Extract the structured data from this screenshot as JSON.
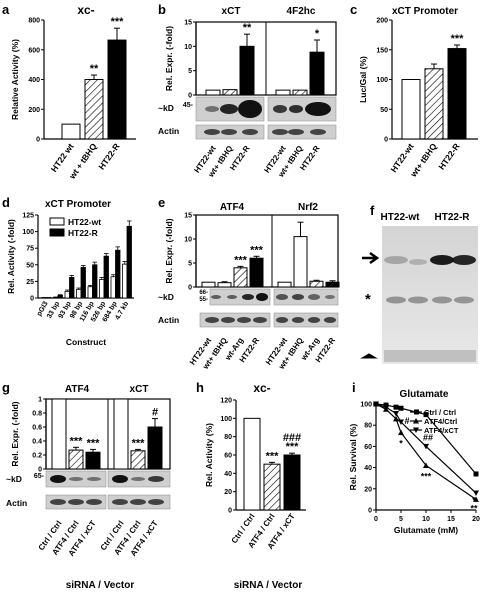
{
  "chart_data": [
    {
      "panel": "a",
      "type": "bar",
      "title": "xc-",
      "ylabel": "Relative Activity (%)",
      "ylim": [
        0,
        800
      ],
      "yticks": [
        0,
        200,
        400,
        600,
        800
      ],
      "categories": [
        "HT22 wt",
        "wt + tBHQ",
        "HT22-R"
      ],
      "values": [
        100,
        400,
        665
      ],
      "errors": [
        0,
        30,
        80
      ],
      "significance": [
        "",
        "**",
        "***"
      ],
      "fills": [
        "white",
        "hatch",
        "black"
      ]
    },
    {
      "panel": "b",
      "type": "bar",
      "ylabel": "Rel. Expr. (-fold)",
      "ylim": [
        0,
        15
      ],
      "yticks": [
        0,
        5,
        10,
        15
      ],
      "groups": [
        {
          "title": "xCT",
          "categories": [
            "HT22-wt",
            "wt+ tBHQ",
            "HT22-R"
          ],
          "values": [
            1,
            1.1,
            10
          ],
          "errors": [
            0,
            0,
            2.5
          ],
          "significance": [
            "",
            "",
            "**"
          ],
          "band_labels": [
            "~kD",
            "45-",
            "Actin"
          ]
        },
        {
          "title": "4F2hc",
          "categories": [
            "HT22-wt",
            "wt+ tBHQ",
            "HT22-R"
          ],
          "values": [
            1,
            1,
            8.8
          ],
          "errors": [
            0,
            0,
            2.5
          ],
          "significance": [
            "",
            "",
            "*"
          ],
          "band_labels": [
            "100-"
          ]
        }
      ]
    },
    {
      "panel": "c",
      "type": "bar",
      "title": "xCT Promoter",
      "ylabel": "Luc/Gal (%)",
      "ylim": [
        0,
        200
      ],
      "yticks": [
        0,
        50,
        100,
        150,
        200
      ],
      "categories": [
        "HT22-wt",
        "wt+ tBHQ",
        "HT22-R"
      ],
      "values": [
        100,
        118,
        152
      ],
      "errors": [
        0,
        8,
        6
      ],
      "significance": [
        "",
        "",
        "***"
      ]
    },
    {
      "panel": "d",
      "type": "bar",
      "title": "xCT Promoter",
      "xlabel": "Construct",
      "ylabel": "Rel. Activity (-fold)",
      "ylim": [
        0,
        125
      ],
      "yticks": [
        0,
        25,
        50,
        75,
        100,
        125
      ],
      "categories": [
        "pGl3",
        "33 bp",
        "93 bp",
        "98 bp",
        "116 bp",
        "526 bp",
        "684 bp",
        "4.7 kb"
      ],
      "series": [
        {
          "name": "HT22-wt",
          "values": [
            0.5,
            1,
            10,
            13,
            17,
            28,
            32,
            51
          ]
        },
        {
          "name": "HT22-R",
          "values": [
            0.5,
            4,
            31,
            46,
            50,
            63,
            72,
            108
          ]
        }
      ],
      "errors": [
        [
          0.2,
          0.5,
          2,
          2,
          2,
          3,
          3,
          4
        ],
        [
          0.2,
          1,
          3,
          3,
          4,
          4,
          5,
          8
        ]
      ]
    },
    {
      "panel": "e",
      "type": "bar",
      "ylabel": "Rel. Expr. (-fold)",
      "ylim": [
        0,
        15
      ],
      "yticks": [
        0,
        5,
        10,
        15
      ],
      "groups": [
        {
          "title": "ATF4",
          "categories": [
            "HT22-wt",
            "wt+ tBHQ",
            "wt-Arg",
            "HT22-R"
          ],
          "values": [
            1,
            0.9,
            4,
            6
          ],
          "errors": [
            0,
            0.2,
            0.3,
            0.4
          ],
          "significance": [
            "",
            "",
            "***",
            "***"
          ],
          "band_labels": [
            "~kD",
            "66-",
            "55-",
            "Actin"
          ]
        },
        {
          "title": "Nrf2",
          "categories": [
            "HT22-wt",
            "wt+ tBHQ",
            "wt-Arg",
            "HT22-R"
          ],
          "values": [
            1,
            10.5,
            1.2,
            1
          ],
          "errors": [
            0,
            3,
            0.2,
            0.3
          ],
          "significance": [
            "",
            "",
            "",
            ""
          ],
          "band_labels": [
            "110-"
          ]
        }
      ]
    },
    {
      "panel": "f",
      "type": "gel",
      "lane_labels": [
        "HT22-wt",
        "HT22-R"
      ],
      "markers": [
        "*"
      ]
    },
    {
      "panel": "g",
      "type": "bar",
      "ylabel": "Rel. Expr. (-fold)",
      "ylim": [
        0,
        1.0
      ],
      "yticks": [
        0,
        0.2,
        0.4,
        0.6,
        0.8,
        1.0
      ],
      "xlabel": "siRNA / Vector",
      "groups": [
        {
          "title": "ATF4",
          "categories": [
            "Ctrl / Ctrl",
            "ATF4 / Ctrl",
            "ATF4 / xCT"
          ],
          "values": [
            1,
            0.27,
            0.24
          ],
          "errors": [
            0,
            0.04,
            0.04
          ],
          "significance": [
            "",
            "***",
            "***"
          ],
          "band_labels": [
            "~kD",
            "65-",
            "Actin"
          ]
        },
        {
          "title": "xCT",
          "categories": [
            "Ctrl / Ctrl",
            "ATF4 / Ctrl",
            "ATF4 / xCT"
          ],
          "values": [
            1,
            0.26,
            0.6
          ],
          "errors": [
            0,
            0.02,
            0.12
          ],
          "significance": [
            "",
            "***",
            "#"
          ],
          "band_labels": [
            "45-"
          ]
        }
      ]
    },
    {
      "panel": "h",
      "type": "bar",
      "title": "xc-",
      "xlabel": "siRNA / Vector",
      "ylabel": "Rel. Activity (%)",
      "ylim": [
        0,
        120
      ],
      "yticks": [
        0,
        20,
        40,
        60,
        80,
        100,
        120
      ],
      "categories": [
        "Ctrl / Ctrl",
        "ATF4 / Ctrl",
        "ATF4 / xCT"
      ],
      "values": [
        100,
        50,
        60
      ],
      "errors": [
        0,
        2,
        2
      ],
      "significance": [
        "",
        "***",
        "###\n***"
      ]
    },
    {
      "panel": "i",
      "type": "line",
      "title": "Glutamate",
      "xlabel": "Glutamate (mM)",
      "ylabel": "Rel. Survival (%)",
      "xlim": [
        0,
        20
      ],
      "ylim": [
        0,
        100
      ],
      "xticks": [
        0,
        5,
        10,
        15,
        20
      ],
      "yticks": [
        0,
        20,
        40,
        60,
        80,
        100
      ],
      "x": [
        0,
        2,
        4,
        5,
        10,
        20
      ],
      "series": [
        {
          "name": "Ctrl / Ctrl",
          "marker": "square",
          "values": [
            100,
            99,
            97,
            96,
            90,
            34
          ]
        },
        {
          "name": "ATF4/Ctrl",
          "marker": "triangle-up",
          "values": [
            100,
            95,
            86,
            73,
            42,
            10
          ]
        },
        {
          "name": "ATF4/xCT",
          "marker": "triangle-down",
          "values": [
            100,
            97,
            91,
            83,
            60,
            16
          ]
        }
      ],
      "annotations": [
        "#",
        "*",
        "##",
        "***",
        "**",
        "*"
      ]
    }
  ]
}
